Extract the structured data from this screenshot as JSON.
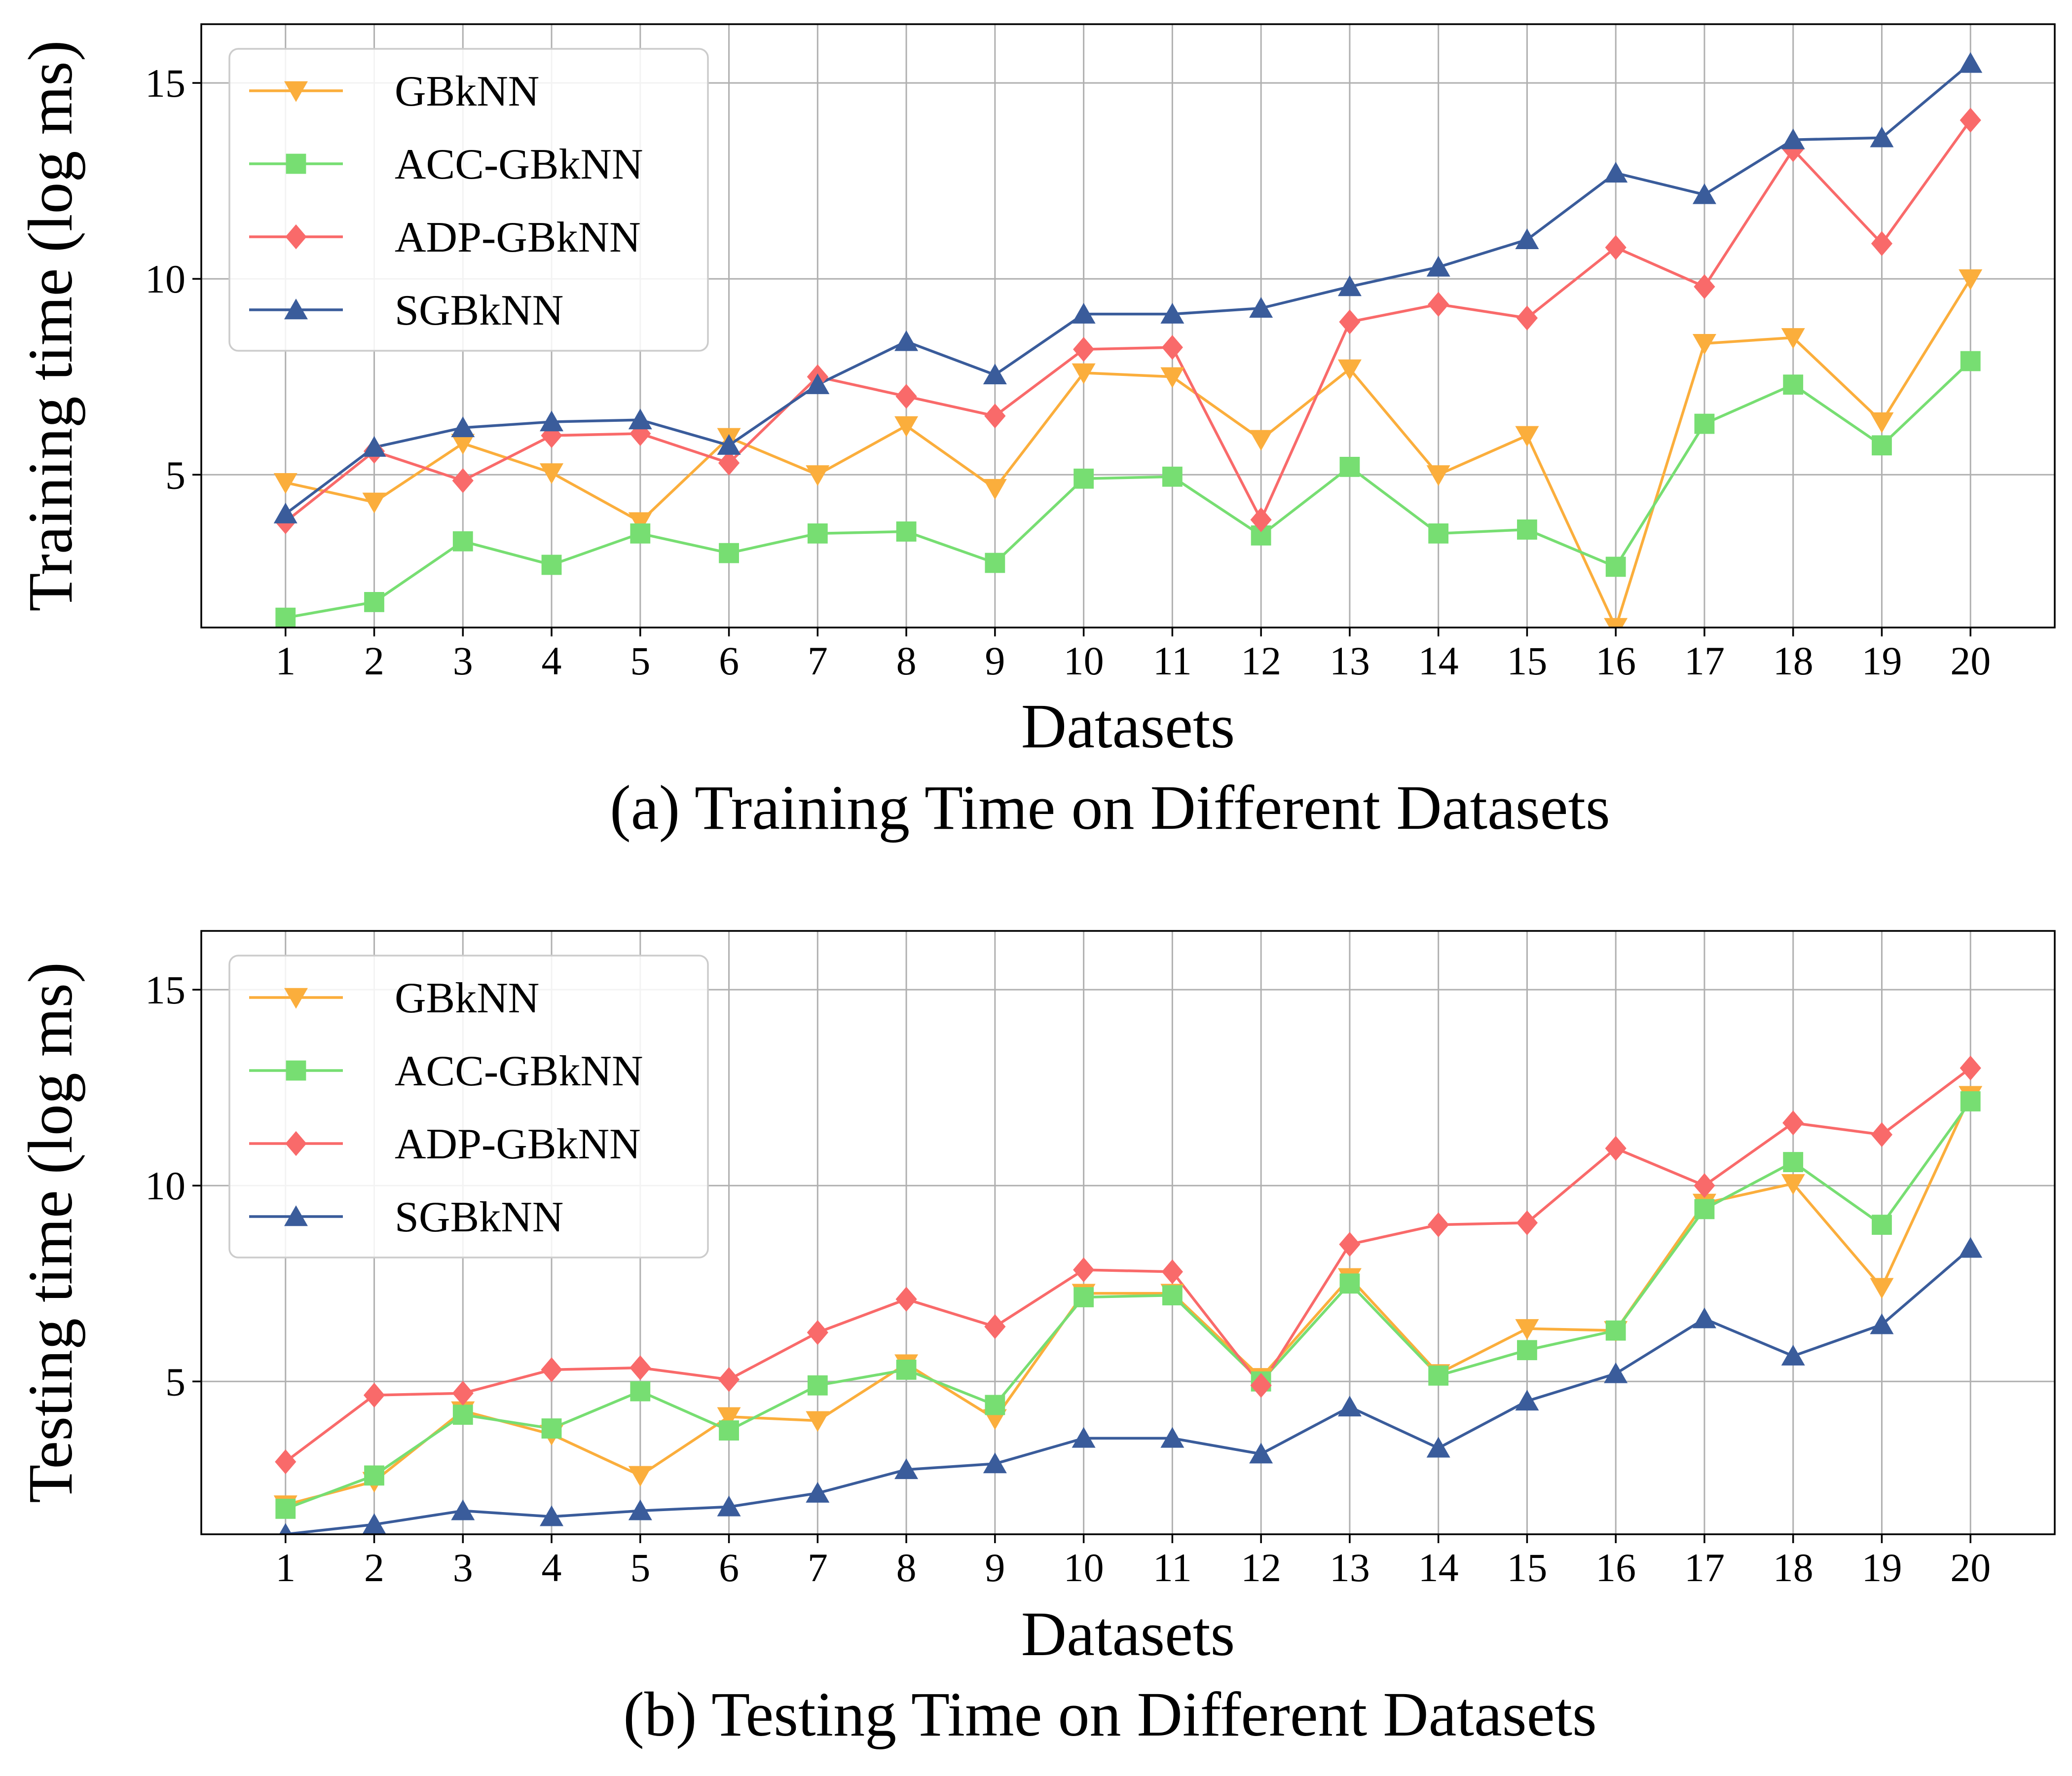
{
  "figure": {
    "captions": [
      "(a) Training Time on Different Datasets",
      "(b) Testing Time on Different Datasets"
    ]
  },
  "colors": {
    "GBkNN": "#FBAE3C",
    "ACC-GBkNN": "#77DE72",
    "ADP-GBkNN": "#F96A6A",
    "SGBkNN": "#3A5C9B",
    "grid": "#b0b0b0",
    "frame": "#000000"
  },
  "chart_data": [
    {
      "type": "line",
      "title": "",
      "caption": "(a) Training Time on Different Datasets",
      "xlabel": "Datasets",
      "ylabel": "Training time (log ms)",
      "x": [
        1,
        2,
        3,
        4,
        5,
        6,
        7,
        8,
        9,
        10,
        11,
        12,
        13,
        14,
        15,
        16,
        17,
        18,
        19,
        20
      ],
      "ylim": [
        1.1,
        16.5
      ],
      "yticks": [
        5,
        10,
        15
      ],
      "grid": true,
      "legend_position": "top-left",
      "series": [
        {
          "name": "GBkNN",
          "marker": "triangle-down",
          "values": [
            4.8,
            4.3,
            5.8,
            5.05,
            3.8,
            5.95,
            5.0,
            6.25,
            4.65,
            7.6,
            7.5,
            5.9,
            7.7,
            5.0,
            6.0,
            1.1,
            8.35,
            8.5,
            6.35,
            10.0
          ]
        },
        {
          "name": "ACC-GBkNN",
          "marker": "square",
          "values": [
            1.35,
            1.75,
            3.3,
            2.7,
            3.5,
            3.0,
            3.5,
            3.55,
            2.75,
            4.9,
            4.95,
            3.45,
            5.2,
            3.5,
            3.6,
            2.65,
            6.3,
            7.3,
            5.75,
            7.9
          ]
        },
        {
          "name": "ADP-GBkNN",
          "marker": "diamond",
          "values": [
            3.8,
            5.6,
            4.85,
            6.0,
            6.05,
            5.3,
            7.5,
            7.0,
            6.5,
            8.2,
            8.25,
            3.85,
            8.9,
            9.35,
            9.0,
            10.8,
            9.8,
            13.3,
            10.9,
            14.05
          ]
        },
        {
          "name": "SGBkNN",
          "marker": "triangle-up",
          "values": [
            4.0,
            5.7,
            6.2,
            6.35,
            6.4,
            5.75,
            7.3,
            8.4,
            7.55,
            9.1,
            9.1,
            9.25,
            9.8,
            10.3,
            11.0,
            12.7,
            12.15,
            13.55,
            13.6,
            15.5
          ]
        }
      ]
    },
    {
      "type": "line",
      "title": "",
      "caption": "(b) Testing Time on Different Datasets",
      "xlabel": "Datasets",
      "ylabel": "Testing time (log ms)",
      "x": [
        1,
        2,
        3,
        4,
        5,
        6,
        7,
        8,
        9,
        10,
        11,
        12,
        13,
        14,
        15,
        16,
        17,
        18,
        19,
        20
      ],
      "ylim": [
        1.1,
        16.5
      ],
      "yticks": [
        5,
        10,
        15
      ],
      "grid": true,
      "legend_position": "top-left",
      "series": [
        {
          "name": "GBkNN",
          "marker": "triangle-down",
          "values": [
            1.85,
            2.45,
            4.25,
            3.65,
            2.6,
            4.1,
            4.0,
            5.45,
            4.05,
            7.25,
            7.25,
            5.1,
            7.65,
            5.2,
            6.35,
            6.3,
            9.55,
            10.05,
            7.4,
            12.3
          ]
        },
        {
          "name": "ACC-GBkNN",
          "marker": "square",
          "values": [
            1.75,
            2.6,
            4.15,
            3.8,
            4.75,
            3.75,
            4.9,
            5.3,
            4.4,
            7.15,
            7.2,
            5.0,
            7.5,
            5.15,
            5.8,
            6.3,
            9.4,
            10.6,
            9.0,
            12.15
          ]
        },
        {
          "name": "ADP-GBkNN",
          "marker": "diamond",
          "values": [
            2.95,
            4.65,
            4.7,
            5.3,
            5.35,
            5.05,
            6.25,
            7.1,
            6.4,
            7.85,
            7.8,
            4.9,
            8.5,
            9.0,
            9.05,
            10.95,
            10.0,
            11.6,
            11.3,
            13.0
          ]
        },
        {
          "name": "SGBkNN",
          "marker": "triangle-up",
          "values": [
            1.1,
            1.35,
            1.7,
            1.55,
            1.7,
            1.8,
            2.15,
            2.75,
            2.9,
            3.55,
            3.55,
            3.15,
            4.35,
            3.3,
            4.5,
            5.2,
            6.6,
            5.65,
            6.45,
            8.4
          ]
        }
      ]
    }
  ]
}
